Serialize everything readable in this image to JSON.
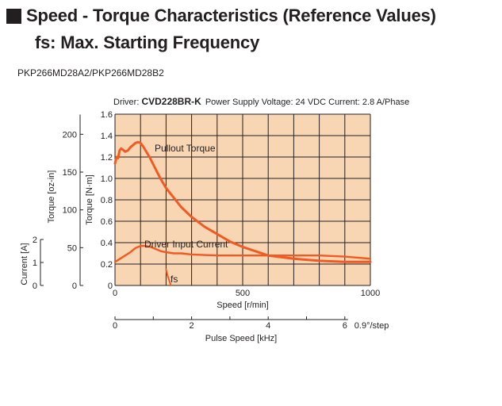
{
  "heading": {
    "line1": "Speed - Torque Characteristics (Reference Values)",
    "line2": "fs: Max. Starting Frequency"
  },
  "model": "PKP266MD28A2/PKP266MD28B2",
  "chart_data": {
    "type": "line",
    "driver_label": "Driver: ",
    "driver_name": "CVD228BR-K",
    "conditions": "Power Supply Voltage: 24 VDC  Current: 2.8 A/Phase",
    "xlabel": "Speed [r/min]",
    "xlim": [
      0,
      1000
    ],
    "x_ticks": [
      "0",
      "500",
      "1000"
    ],
    "ylabel": "Torque [N·m]",
    "ylim": [
      0,
      1.6
    ],
    "y_ticks": [
      "0",
      "0.2",
      "0.4",
      "0.6",
      "0.8",
      "1.0",
      "1.2",
      "1.4",
      "1.6"
    ],
    "oz_label": "Torque [oz-in]",
    "oz_ticks": [
      "0",
      "50",
      "100",
      "150",
      "200"
    ],
    "current_label": "Current [A]",
    "current_ticks": [
      "0",
      "1",
      "2"
    ],
    "pulse_label": "Pulse Speed [kHz]",
    "pulse_ticks": [
      "0",
      "2",
      "4",
      "6"
    ],
    "step_label": "0.9°/step",
    "grid": true,
    "series": [
      {
        "name": "Pullout Torque",
        "x": [
          0,
          6,
          12,
          18,
          24,
          30,
          40,
          50,
          60,
          70,
          80,
          90,
          100,
          110,
          120,
          135,
          150,
          165,
          180,
          200,
          230,
          260,
          300,
          350,
          400,
          450,
          500,
          550,
          600,
          700,
          800,
          900,
          1000
        ],
        "y": [
          1.14,
          1.2,
          1.19,
          1.26,
          1.28,
          1.27,
          1.25,
          1.26,
          1.29,
          1.31,
          1.33,
          1.34,
          1.33,
          1.3,
          1.26,
          1.2,
          1.13,
          1.06,
          0.99,
          0.91,
          0.82,
          0.73,
          0.64,
          0.55,
          0.48,
          0.41,
          0.36,
          0.32,
          0.28,
          0.25,
          0.23,
          0.22,
          0.22
        ]
      },
      {
        "name": "Driver Input Current",
        "x": [
          0,
          20,
          40,
          60,
          80,
          100,
          120,
          140,
          160,
          180,
          200,
          230,
          260,
          300,
          400,
          500,
          600,
          700,
          800,
          900,
          1000
        ],
        "y": [
          0.22,
          0.25,
          0.28,
          0.31,
          0.35,
          0.37,
          0.37,
          0.36,
          0.34,
          0.32,
          0.31,
          0.3,
          0.3,
          0.29,
          0.28,
          0.28,
          0.28,
          0.28,
          0.28,
          0.27,
          0.25
        ]
      },
      {
        "name": "fs",
        "x": [
          200,
          205,
          212,
          219
        ],
        "y": [
          0.15,
          0.1,
          0.05,
          0.0
        ]
      }
    ]
  }
}
